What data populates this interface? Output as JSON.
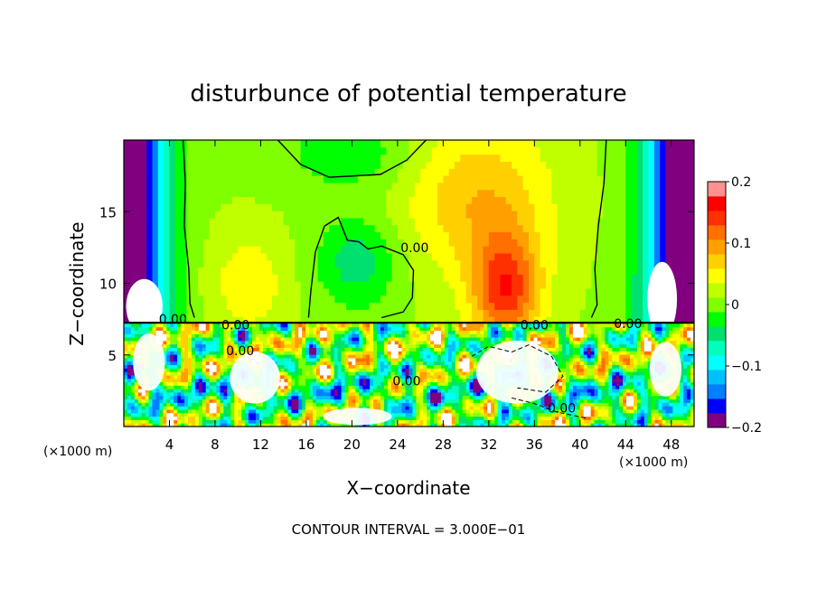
{
  "chart_data": {
    "type": "heatmap",
    "title": "disturbunce of potential temperature",
    "xlabel": "X−coordinate",
    "ylabel": "Z−coordinate",
    "x_unit_left": "(×1000 m)",
    "x_unit_right": "(×1000 m)",
    "xlim": [
      0,
      50
    ],
    "ylim": [
      0,
      20
    ],
    "x_ticks": [
      4,
      8,
      12,
      16,
      20,
      24,
      28,
      32,
      36,
      40,
      44,
      48
    ],
    "y_ticks": [
      5,
      10,
      15
    ],
    "colorbar": {
      "range": [
        -0.2,
        0.2
      ],
      "tick_values": [
        0.2,
        0.1,
        0,
        -0.1,
        -0.2
      ],
      "tick_labels": [
        "0.2",
        "0.1",
        "0",
        "−0.1",
        "−0.2"
      ],
      "colors": [
        "#800080",
        "#0000ff",
        "#0080ff",
        "#00c0ff",
        "#00ffff",
        "#00ffbf",
        "#00e070",
        "#00ff00",
        "#80ff00",
        "#c0ff00",
        "#ffff00",
        "#ffd000",
        "#ffa000",
        "#ff7000",
        "#ff3000",
        "#ff0000",
        "#ff9090"
      ]
    },
    "contour_labels": [
      {
        "x": 25.5,
        "z": 12.5,
        "text": "0.00"
      },
      {
        "x": 4.3,
        "z": 7.5,
        "text": "0.00"
      },
      {
        "x": 9.8,
        "z": 7.1,
        "text": "0.00"
      },
      {
        "x": 10.2,
        "z": 5.3,
        "text": "0.00"
      },
      {
        "x": 24.8,
        "z": 3.2,
        "text": "0.00"
      },
      {
        "x": 36.0,
        "z": 7.1,
        "text": "0.00"
      },
      {
        "x": 44.2,
        "z": 7.2,
        "text": "0.00"
      },
      {
        "x": 38.4,
        "z": 1.3,
        "text": "0.00"
      }
    ],
    "contour_interval_text": "CONTOUR INTERVAL = 3.000E−01"
  }
}
